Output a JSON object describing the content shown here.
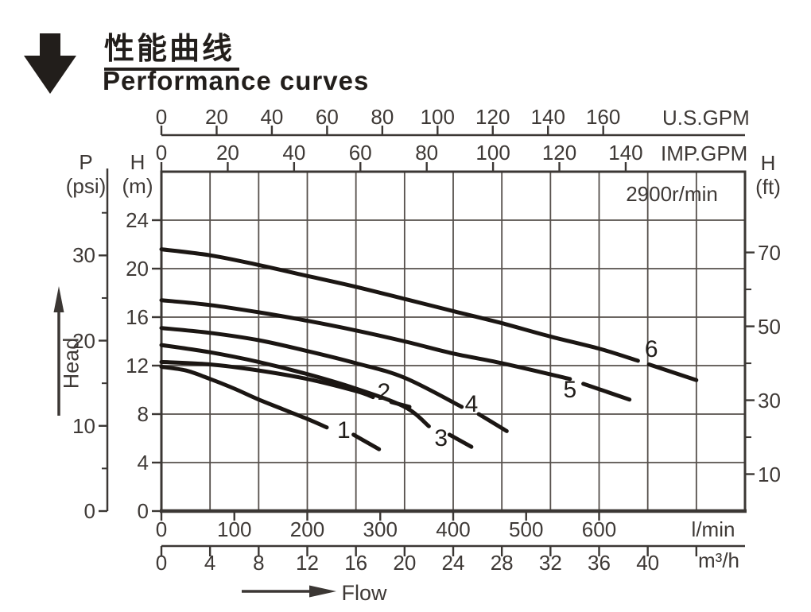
{
  "header": {
    "title_zh": "性能曲线",
    "title_en": "Performance curves",
    "arrow_icon": "down-arrow-icon"
  },
  "chart_data": {
    "type": "line",
    "title": "Performance curves",
    "annotation_rpm": "2900r/min",
    "head_label": "Head",
    "flow_label": "Flow",
    "grid": {
      "x_step_m3h": 4,
      "x_max": 48,
      "y_step_m": 4,
      "y_max": 28,
      "grid_on": true
    },
    "x_axes": [
      {
        "id": "usgpm",
        "unit_label": "U.S.GPM",
        "to_m3h": 0.22712,
        "ticks": [
          0,
          20,
          40,
          60,
          80,
          100,
          120,
          140,
          160
        ]
      },
      {
        "id": "impgpm",
        "unit_label": "IMP.GPM",
        "to_m3h": 0.27277,
        "ticks": [
          0,
          20,
          40,
          60,
          80,
          100,
          120,
          140
        ]
      },
      {
        "id": "lmin",
        "unit_label": "l/min",
        "to_m3h": 0.06,
        "ticks": [
          0,
          100,
          200,
          300,
          400,
          500,
          600
        ]
      },
      {
        "id": "m3h",
        "unit_label": "m³/h",
        "to_m3h": 1,
        "ticks": [
          0,
          4,
          8,
          12,
          16,
          20,
          24,
          28,
          32,
          36,
          40
        ],
        "unlabeled_ticks": [
          44
        ]
      }
    ],
    "y_axes": [
      {
        "id": "m",
        "unit_label_1": "H",
        "unit_label_2": "(m)",
        "to_m": 1,
        "ticks": [
          0,
          4,
          8,
          12,
          16,
          20,
          24
        ]
      },
      {
        "id": "psi",
        "unit_label_1": "P",
        "unit_label_2": "(psi)",
        "to_m": 0.70307,
        "ticks": [
          0,
          10,
          20,
          30
        ],
        "minor_ticks": [
          5,
          15,
          25,
          35
        ]
      },
      {
        "id": "ft",
        "unit_label_1": "H",
        "unit_label_2": "(ft)",
        "to_m": 0.3048,
        "ticks": [
          10,
          30,
          50,
          70
        ],
        "minor_ticks": [
          20,
          40,
          60
        ]
      }
    ],
    "series": [
      {
        "name": "1",
        "label_at": [
          15.0,
          6.6
        ],
        "segments": [
          [
            [
              0,
              11.9
            ],
            [
              2,
              11.6
            ],
            [
              4,
              10.9
            ],
            [
              6,
              10.1
            ],
            [
              8,
              9.2
            ],
            [
              10,
              8.4
            ],
            [
              12,
              7.6
            ],
            [
              13.6,
              6.9
            ]
          ],
          [
            [
              15.8,
              6.3
            ],
            [
              17.9,
              5.1
            ]
          ]
        ]
      },
      {
        "name": "2",
        "label_at": [
          18.3,
          9.8
        ],
        "segments": [
          [
            [
              0,
              12.3
            ],
            [
              4,
              12.1
            ],
            [
              8,
              11.6
            ],
            [
              12,
              10.9
            ],
            [
              16,
              9.9
            ],
            [
              17.4,
              9.4
            ]
          ],
          [
            [
              18.9,
              9.0
            ],
            [
              20.4,
              8.6
            ]
          ]
        ]
      },
      {
        "name": "3",
        "label_at": [
          23.0,
          6.0
        ],
        "segments": [
          [
            [
              0,
              13.7
            ],
            [
              4,
              13.1
            ],
            [
              8,
              12.3
            ],
            [
              12,
              11.3
            ],
            [
              16,
              10.1
            ],
            [
              20,
              8.6
            ],
            [
              22,
              7.0
            ]
          ],
          [
            [
              23.7,
              6.3
            ],
            [
              25.5,
              5.3
            ]
          ]
        ]
      },
      {
        "name": "4",
        "label_at": [
          25.5,
          8.8
        ],
        "segments": [
          [
            [
              0,
              15.1
            ],
            [
              4,
              14.7
            ],
            [
              8,
              14.1
            ],
            [
              12,
              13.2
            ],
            [
              16,
              12.2
            ],
            [
              20,
              11.0
            ],
            [
              24.7,
              8.6
            ]
          ],
          [
            [
              26.1,
              8.0
            ],
            [
              28.4,
              6.6
            ]
          ]
        ]
      },
      {
        "name": "5",
        "label_at": [
          33.6,
          10.0
        ],
        "segments": [
          [
            [
              0,
              17.4
            ],
            [
              4,
              17.0
            ],
            [
              8,
              16.4
            ],
            [
              12,
              15.7
            ],
            [
              16,
              14.9
            ],
            [
              20,
              14.0
            ],
            [
              24,
              13.0
            ],
            [
              28,
              12.2
            ],
            [
              33.6,
              10.9
            ]
          ],
          [
            [
              34.7,
              10.5
            ],
            [
              38.5,
              9.2
            ]
          ]
        ]
      },
      {
        "name": "6",
        "label_at": [
          40.3,
          13.3
        ],
        "segments": [
          [
            [
              0,
              21.6
            ],
            [
              4,
              21.1
            ],
            [
              8,
              20.3
            ],
            [
              12,
              19.4
            ],
            [
              16,
              18.5
            ],
            [
              20,
              17.5
            ],
            [
              24,
              16.5
            ],
            [
              28,
              15.5
            ],
            [
              32,
              14.4
            ],
            [
              36,
              13.4
            ],
            [
              39.2,
              12.4
            ]
          ],
          [
            [
              40.1,
              12.1
            ],
            [
              44,
              10.8
            ]
          ]
        ]
      }
    ],
    "colors": {
      "ink": "#1b1613",
      "grid": "#56504c",
      "axis": "#3b3734",
      "text": "#3e3936"
    }
  }
}
